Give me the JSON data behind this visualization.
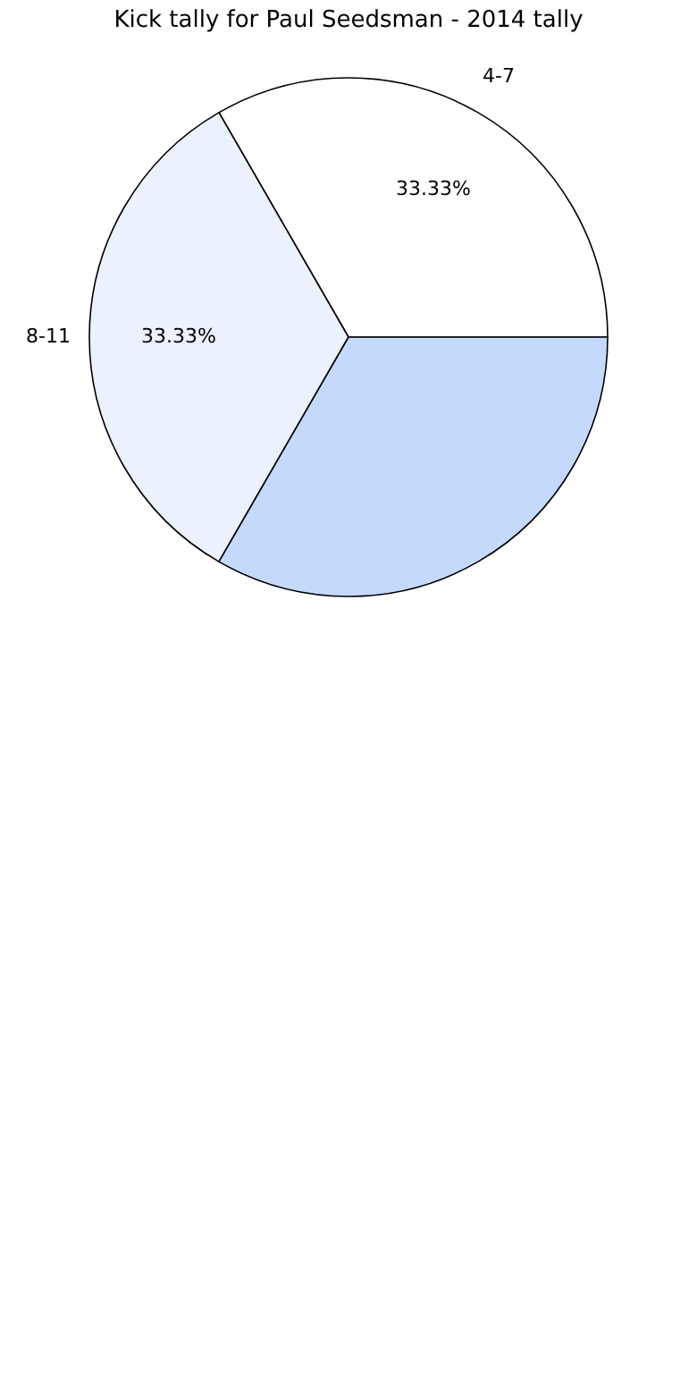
{
  "chart_data": {
    "type": "pie",
    "title": "Kick tally for Paul Seedsman - 2014 tally",
    "categories": [
      "4-7",
      "8-11",
      null
    ],
    "values": [
      33.33,
      33.33,
      33.33
    ],
    "colors": [
      "#ffffff",
      "#ebf1fd",
      "#c5d9fc"
    ],
    "value_labels": [
      "33.33%",
      "33.33%",
      null
    ],
    "legend": false
  }
}
